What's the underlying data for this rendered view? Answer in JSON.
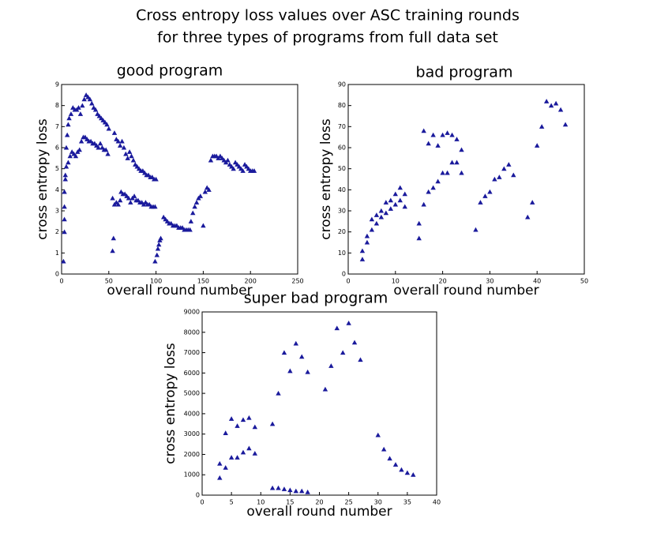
{
  "title": [
    "Cross entropy loss values over ASC training rounds",
    "for three types of programs from full data set"
  ],
  "chart_data": [
    {
      "type": "scatter",
      "title": "good program",
      "x_label": "overall round number",
      "y_label": "cross entropy loss",
      "color": "#1a1a9c",
      "xlim": [
        0,
        250
      ],
      "ylim": [
        0,
        9
      ],
      "xticks": [
        0,
        50,
        100,
        150,
        200,
        250
      ],
      "yticks": [
        0,
        1,
        2,
        3,
        4,
        5,
        6,
        7,
        8,
        9
      ],
      "x": [
        5,
        6,
        7,
        8,
        10,
        12,
        14,
        16,
        18,
        20,
        22,
        24,
        26,
        28,
        30,
        32,
        34,
        36,
        38,
        40,
        42,
        44,
        46,
        48,
        50,
        3,
        4,
        5,
        7,
        9,
        11,
        13,
        15,
        17,
        19,
        21,
        23,
        25,
        27,
        29,
        31,
        33,
        35,
        37,
        39,
        41,
        43,
        45,
        47,
        49,
        2,
        3,
        3,
        3,
        4,
        54,
        55,
        54,
        56,
        58,
        60,
        62,
        56,
        58,
        60,
        62,
        64,
        66,
        68,
        70,
        72,
        74,
        76,
        78,
        80,
        82,
        84,
        86,
        88,
        90,
        92,
        94,
        96,
        98,
        100,
        63,
        65,
        67,
        69,
        71,
        73,
        75,
        77,
        79,
        81,
        83,
        85,
        87,
        89,
        91,
        93,
        95,
        97,
        99,
        99,
        101,
        102,
        103,
        104,
        105,
        108,
        110,
        112,
        114,
        116,
        118,
        120,
        122,
        124,
        126,
        128,
        130,
        132,
        134,
        136,
        137,
        139,
        141,
        143,
        145,
        147,
        150,
        152,
        154,
        156,
        158,
        160,
        162,
        164,
        166,
        168,
        170,
        172,
        174,
        176,
        178,
        180,
        182,
        184,
        186,
        188,
        190,
        192,
        194,
        196,
        198,
        200,
        202,
        204
      ],
      "values": [
        6.0,
        6.6,
        7.1,
        7.4,
        7.6,
        7.9,
        7.8,
        7.8,
        7.9,
        7.6,
        8.0,
        8.3,
        8.5,
        8.4,
        8.3,
        8.1,
        7.9,
        7.8,
        7.6,
        7.5,
        7.4,
        7.3,
        7.2,
        7.1,
        6.9,
        3.9,
        4.5,
        5.1,
        5.3,
        5.6,
        5.8,
        5.7,
        5.6,
        5.8,
        5.9,
        6.3,
        6.5,
        6.5,
        6.4,
        6.3,
        6.3,
        6.2,
        6.2,
        6.1,
        6.0,
        6.2,
        6.0,
        5.9,
        5.9,
        5.7,
        0.6,
        2.0,
        2.6,
        3.2,
        4.7,
        1.1,
        1.7,
        3.6,
        3.3,
        3.4,
        3.3,
        3.5,
        6.7,
        6.4,
        6.3,
        6.1,
        6.3,
        6.0,
        5.7,
        5.5,
        5.8,
        5.6,
        5.4,
        5.2,
        5.1,
        5.0,
        4.9,
        4.9,
        4.8,
        4.7,
        4.7,
        4.6,
        4.6,
        4.5,
        4.5,
        3.9,
        3.8,
        3.8,
        3.7,
        3.6,
        3.4,
        3.6,
        3.7,
        3.5,
        3.5,
        3.4,
        3.4,
        3.3,
        3.4,
        3.3,
        3.3,
        3.2,
        3.2,
        3.2,
        0.6,
        0.9,
        1.2,
        1.4,
        1.6,
        1.7,
        2.7,
        2.6,
        2.5,
        2.4,
        2.4,
        2.3,
        2.3,
        2.3,
        2.2,
        2.2,
        2.2,
        2.1,
        2.1,
        2.1,
        2.1,
        2.5,
        2.9,
        3.2,
        3.4,
        3.6,
        3.7,
        2.3,
        3.9,
        4.1,
        4.0,
        5.4,
        5.6,
        5.6,
        5.6,
        5.5,
        5.6,
        5.5,
        5.4,
        5.3,
        5.4,
        5.2,
        5.1,
        5.0,
        5.3,
        5.2,
        5.1,
        5.0,
        4.9,
        5.2,
        5.1,
        5.0,
        4.9,
        4.9,
        4.9
      ]
    },
    {
      "type": "scatter",
      "title": "bad program",
      "x_label": "overall round number",
      "y_label": "cross entropy loss",
      "color": "#1a1a9c",
      "xlim": [
        0,
        50
      ],
      "ylim": [
        0,
        90
      ],
      "xticks": [
        0,
        10,
        20,
        30,
        40,
        50
      ],
      "yticks": [
        0,
        10,
        20,
        30,
        40,
        50,
        60,
        70,
        80,
        90
      ],
      "x": [
        3,
        3,
        4,
        4,
        5,
        5,
        6,
        6,
        7,
        7,
        8,
        8,
        9,
        9,
        10,
        10,
        11,
        11,
        12,
        12,
        15,
        15,
        16,
        16,
        17,
        17,
        18,
        18,
        19,
        19,
        20,
        20,
        21,
        21,
        22,
        22,
        23,
        23,
        24,
        24,
        27,
        28,
        29,
        30,
        31,
        32,
        33,
        34,
        35,
        38,
        39,
        40,
        41,
        42,
        43,
        44,
        45,
        46
      ],
      "values": [
        7,
        11,
        15,
        18,
        21,
        26,
        24,
        28,
        27,
        30,
        29,
        34,
        31,
        35,
        33,
        38,
        35,
        41,
        32,
        38,
        17,
        24,
        33,
        68,
        39,
        62,
        41,
        66,
        44,
        61,
        48,
        66,
        48,
        67,
        53,
        66,
        53,
        64,
        48,
        59,
        21,
        34,
        37,
        39,
        45,
        46,
        50,
        52,
        47,
        27,
        34,
        61,
        70,
        82,
        80,
        81,
        78,
        71
      ]
    },
    {
      "type": "scatter",
      "title": "super bad program",
      "x_label": "overall round number",
      "y_label": "cross entropy loss",
      "color": "#1a1a9c",
      "xlim": [
        0,
        40
      ],
      "ylim": [
        0,
        9000
      ],
      "xticks": [
        0,
        5,
        10,
        15,
        20,
        25,
        30,
        35,
        40
      ],
      "yticks": [
        0,
        1000,
        2000,
        3000,
        4000,
        5000,
        6000,
        7000,
        8000,
        9000
      ],
      "x": [
        3,
        3,
        4,
        4,
        5,
        5,
        6,
        6,
        7,
        7,
        8,
        8,
        9,
        9,
        12,
        12,
        13,
        13,
        14,
        14,
        15,
        15,
        16,
        16,
        17,
        17,
        18,
        18,
        21,
        22,
        23,
        24,
        25,
        26,
        27,
        30,
        31,
        32,
        33,
        34,
        35,
        36
      ],
      "values": [
        850,
        1550,
        1350,
        3050,
        1850,
        3750,
        1850,
        3400,
        2100,
        3700,
        2300,
        3800,
        2050,
        3350,
        3500,
        350,
        5000,
        350,
        7000,
        300,
        6100,
        250,
        7450,
        200,
        6800,
        200,
        6050,
        150,
        5200,
        6350,
        8200,
        7000,
        8450,
        7500,
        6650,
        2950,
        2250,
        1800,
        1500,
        1250,
        1100,
        1000
      ]
    }
  ]
}
